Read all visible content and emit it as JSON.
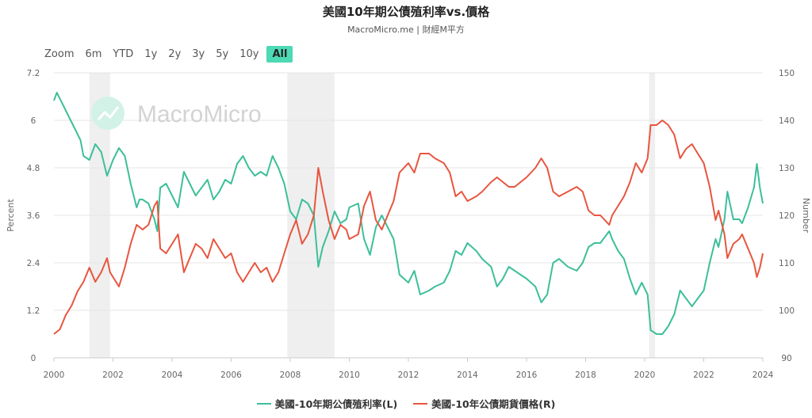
{
  "header": {
    "title": "美國10年期公債殖利率vs.價格",
    "subtitle": "MacroMicro.me | 財經M平方"
  },
  "range_selector": {
    "label": "Zoom",
    "buttons": [
      "6m",
      "YTD",
      "1y",
      "2y",
      "3y",
      "5y",
      "10y",
      "All"
    ],
    "active": "All"
  },
  "watermark": {
    "text": "MacroMicro",
    "icon": "macromicro-logo-icon"
  },
  "colors": {
    "yield": "#3dbf9a",
    "price": "#e8553f",
    "recession": "#efefef",
    "grid": "#e6e6e6"
  },
  "chart_data": {
    "type": "line",
    "x_range": [
      2000,
      2024
    ],
    "x_ticks": [
      "2000",
      "2002",
      "2004",
      "2006",
      "2008",
      "2010",
      "2012",
      "2014",
      "2016",
      "2018",
      "2020",
      "2022",
      "2024"
    ],
    "y_left": {
      "label": "Percent",
      "range": [
        0,
        7.2
      ],
      "ticks": [
        "0",
        "1.2",
        "2.4",
        "3.6",
        "4.8",
        "6",
        "7.2"
      ]
    },
    "y_right": {
      "label": "Number",
      "range": [
        90,
        150
      ],
      "ticks": [
        "90",
        "100",
        "110",
        "120",
        "130",
        "140",
        "150"
      ]
    },
    "grid": true,
    "legend_position": "bottom",
    "recessions": [
      [
        2001.2,
        2001.9
      ],
      [
        2007.9,
        2009.5
      ],
      [
        2020.15,
        2020.35
      ]
    ],
    "series": [
      {
        "name": "美國-10年期公債殖利率(L)",
        "axis": "left",
        "points": [
          [
            2000.0,
            6.5
          ],
          [
            2000.1,
            6.7
          ],
          [
            2000.3,
            6.4
          ],
          [
            2000.5,
            6.1
          ],
          [
            2000.7,
            5.8
          ],
          [
            2000.9,
            5.5
          ],
          [
            2001.0,
            5.1
          ],
          [
            2001.2,
            5.0
          ],
          [
            2001.4,
            5.4
          ],
          [
            2001.6,
            5.2
          ],
          [
            2001.8,
            4.6
          ],
          [
            2001.9,
            4.8
          ],
          [
            2002.0,
            5.0
          ],
          [
            2002.2,
            5.3
          ],
          [
            2002.4,
            5.1
          ],
          [
            2002.6,
            4.4
          ],
          [
            2002.8,
            3.8
          ],
          [
            2002.9,
            4.0
          ],
          [
            2003.0,
            4.0
          ],
          [
            2003.2,
            3.9
          ],
          [
            2003.4,
            3.5
          ],
          [
            2003.5,
            3.2
          ],
          [
            2003.6,
            4.3
          ],
          [
            2003.8,
            4.4
          ],
          [
            2004.0,
            4.1
          ],
          [
            2004.2,
            3.8
          ],
          [
            2004.4,
            4.7
          ],
          [
            2004.6,
            4.4
          ],
          [
            2004.8,
            4.1
          ],
          [
            2005.0,
            4.3
          ],
          [
            2005.2,
            4.5
          ],
          [
            2005.4,
            4.0
          ],
          [
            2005.6,
            4.2
          ],
          [
            2005.8,
            4.5
          ],
          [
            2006.0,
            4.4
          ],
          [
            2006.2,
            4.9
          ],
          [
            2006.4,
            5.1
          ],
          [
            2006.6,
            4.8
          ],
          [
            2006.8,
            4.6
          ],
          [
            2007.0,
            4.7
          ],
          [
            2007.2,
            4.6
          ],
          [
            2007.4,
            5.1
          ],
          [
            2007.6,
            4.8
          ],
          [
            2007.8,
            4.4
          ],
          [
            2008.0,
            3.7
          ],
          [
            2008.2,
            3.5
          ],
          [
            2008.4,
            4.0
          ],
          [
            2008.6,
            3.9
          ],
          [
            2008.8,
            3.6
          ],
          [
            2008.95,
            2.3
          ],
          [
            2009.1,
            2.8
          ],
          [
            2009.3,
            3.2
          ],
          [
            2009.5,
            3.7
          ],
          [
            2009.7,
            3.4
          ],
          [
            2009.9,
            3.5
          ],
          [
            2010.0,
            3.8
          ],
          [
            2010.3,
            3.9
          ],
          [
            2010.5,
            3.0
          ],
          [
            2010.7,
            2.6
          ],
          [
            2010.9,
            3.3
          ],
          [
            2011.1,
            3.6
          ],
          [
            2011.3,
            3.3
          ],
          [
            2011.5,
            3.0
          ],
          [
            2011.7,
            2.1
          ],
          [
            2012.0,
            1.9
          ],
          [
            2012.2,
            2.2
          ],
          [
            2012.4,
            1.6
          ],
          [
            2012.7,
            1.7
          ],
          [
            2012.9,
            1.8
          ],
          [
            2013.2,
            1.9
          ],
          [
            2013.4,
            2.2
          ],
          [
            2013.6,
            2.7
          ],
          [
            2013.8,
            2.6
          ],
          [
            2014.0,
            2.9
          ],
          [
            2014.3,
            2.7
          ],
          [
            2014.5,
            2.5
          ],
          [
            2014.8,
            2.3
          ],
          [
            2015.0,
            1.8
          ],
          [
            2015.2,
            2.0
          ],
          [
            2015.4,
            2.3
          ],
          [
            2015.6,
            2.2
          ],
          [
            2015.8,
            2.1
          ],
          [
            2016.0,
            2.0
          ],
          [
            2016.3,
            1.8
          ],
          [
            2016.5,
            1.4
          ],
          [
            2016.7,
            1.6
          ],
          [
            2016.9,
            2.4
          ],
          [
            2017.1,
            2.5
          ],
          [
            2017.4,
            2.3
          ],
          [
            2017.7,
            2.2
          ],
          [
            2017.9,
            2.4
          ],
          [
            2018.1,
            2.8
          ],
          [
            2018.3,
            2.9
          ],
          [
            2018.5,
            2.9
          ],
          [
            2018.8,
            3.2
          ],
          [
            2018.9,
            3.0
          ],
          [
            2019.1,
            2.7
          ],
          [
            2019.3,
            2.5
          ],
          [
            2019.5,
            2.0
          ],
          [
            2019.7,
            1.6
          ],
          [
            2019.9,
            1.9
          ],
          [
            2020.1,
            1.6
          ],
          [
            2020.2,
            0.7
          ],
          [
            2020.4,
            0.6
          ],
          [
            2020.6,
            0.6
          ],
          [
            2020.8,
            0.8
          ],
          [
            2021.0,
            1.1
          ],
          [
            2021.2,
            1.7
          ],
          [
            2021.4,
            1.5
          ],
          [
            2021.6,
            1.3
          ],
          [
            2021.8,
            1.5
          ],
          [
            2022.0,
            1.7
          ],
          [
            2022.2,
            2.4
          ],
          [
            2022.4,
            3.0
          ],
          [
            2022.5,
            2.8
          ],
          [
            2022.7,
            3.5
          ],
          [
            2022.8,
            4.2
          ],
          [
            2023.0,
            3.5
          ],
          [
            2023.2,
            3.5
          ],
          [
            2023.3,
            3.4
          ],
          [
            2023.5,
            3.8
          ],
          [
            2023.7,
            4.3
          ],
          [
            2023.8,
            4.9
          ],
          [
            2023.9,
            4.3
          ],
          [
            2024.0,
            3.9
          ]
        ]
      },
      {
        "name": "美國-10年公債期貨價格(R)",
        "axis": "right",
        "points": [
          [
            2000.0,
            95
          ],
          [
            2000.2,
            96
          ],
          [
            2000.4,
            99
          ],
          [
            2000.6,
            101
          ],
          [
            2000.8,
            104
          ],
          [
            2001.0,
            106
          ],
          [
            2001.2,
            109
          ],
          [
            2001.4,
            106
          ],
          [
            2001.6,
            108
          ],
          [
            2001.8,
            111
          ],
          [
            2001.9,
            108
          ],
          [
            2002.0,
            107
          ],
          [
            2002.2,
            105
          ],
          [
            2002.4,
            109
          ],
          [
            2002.6,
            114
          ],
          [
            2002.8,
            118
          ],
          [
            2003.0,
            117
          ],
          [
            2003.2,
            118
          ],
          [
            2003.4,
            122
          ],
          [
            2003.5,
            123
          ],
          [
            2003.6,
            113
          ],
          [
            2003.8,
            112
          ],
          [
            2004.0,
            114
          ],
          [
            2004.2,
            116
          ],
          [
            2004.4,
            108
          ],
          [
            2004.6,
            111
          ],
          [
            2004.8,
            114
          ],
          [
            2005.0,
            113
          ],
          [
            2005.2,
            111
          ],
          [
            2005.4,
            115
          ],
          [
            2005.6,
            113
          ],
          [
            2005.8,
            111
          ],
          [
            2006.0,
            112
          ],
          [
            2006.2,
            108
          ],
          [
            2006.4,
            106
          ],
          [
            2006.6,
            108
          ],
          [
            2006.8,
            110
          ],
          [
            2007.0,
            108
          ],
          [
            2007.2,
            109
          ],
          [
            2007.4,
            106
          ],
          [
            2007.6,
            108
          ],
          [
            2007.8,
            112
          ],
          [
            2008.0,
            116
          ],
          [
            2008.2,
            119
          ],
          [
            2008.4,
            114
          ],
          [
            2008.6,
            116
          ],
          [
            2008.8,
            120
          ],
          [
            2008.95,
            130
          ],
          [
            2009.1,
            125
          ],
          [
            2009.3,
            119
          ],
          [
            2009.5,
            115
          ],
          [
            2009.7,
            118
          ],
          [
            2009.9,
            117
          ],
          [
            2010.0,
            115
          ],
          [
            2010.3,
            116
          ],
          [
            2010.5,
            122
          ],
          [
            2010.7,
            125
          ],
          [
            2010.9,
            119
          ],
          [
            2011.1,
            117
          ],
          [
            2011.3,
            120
          ],
          [
            2011.5,
            123
          ],
          [
            2011.7,
            129
          ],
          [
            2012.0,
            131
          ],
          [
            2012.2,
            129
          ],
          [
            2012.4,
            133
          ],
          [
            2012.7,
            133
          ],
          [
            2012.9,
            132
          ],
          [
            2013.2,
            131
          ],
          [
            2013.4,
            129
          ],
          [
            2013.6,
            124
          ],
          [
            2013.8,
            125
          ],
          [
            2014.0,
            123
          ],
          [
            2014.3,
            124
          ],
          [
            2014.5,
            125
          ],
          [
            2014.8,
            127
          ],
          [
            2015.0,
            128
          ],
          [
            2015.2,
            127
          ],
          [
            2015.4,
            126
          ],
          [
            2015.6,
            126
          ],
          [
            2015.8,
            127
          ],
          [
            2016.0,
            128
          ],
          [
            2016.3,
            130
          ],
          [
            2016.5,
            132
          ],
          [
            2016.7,
            130
          ],
          [
            2016.9,
            125
          ],
          [
            2017.1,
            124
          ],
          [
            2017.4,
            125
          ],
          [
            2017.7,
            126
          ],
          [
            2017.9,
            125
          ],
          [
            2018.1,
            121
          ],
          [
            2018.3,
            120
          ],
          [
            2018.5,
            120
          ],
          [
            2018.8,
            118
          ],
          [
            2018.9,
            120
          ],
          [
            2019.1,
            122
          ],
          [
            2019.3,
            124
          ],
          [
            2019.5,
            127
          ],
          [
            2019.7,
            131
          ],
          [
            2019.9,
            129
          ],
          [
            2020.1,
            132
          ],
          [
            2020.2,
            139
          ],
          [
            2020.4,
            139
          ],
          [
            2020.6,
            140
          ],
          [
            2020.8,
            139
          ],
          [
            2021.0,
            137
          ],
          [
            2021.2,
            132
          ],
          [
            2021.4,
            134
          ],
          [
            2021.6,
            135
          ],
          [
            2021.8,
            133
          ],
          [
            2022.0,
            131
          ],
          [
            2022.2,
            126
          ],
          [
            2022.4,
            119
          ],
          [
            2022.5,
            121
          ],
          [
            2022.7,
            116
          ],
          [
            2022.8,
            111
          ],
          [
            2023.0,
            114
          ],
          [
            2023.2,
            115
          ],
          [
            2023.3,
            116
          ],
          [
            2023.5,
            113
          ],
          [
            2023.7,
            110
          ],
          [
            2023.8,
            107
          ],
          [
            2023.9,
            109
          ],
          [
            2024.0,
            112
          ]
        ]
      }
    ]
  }
}
